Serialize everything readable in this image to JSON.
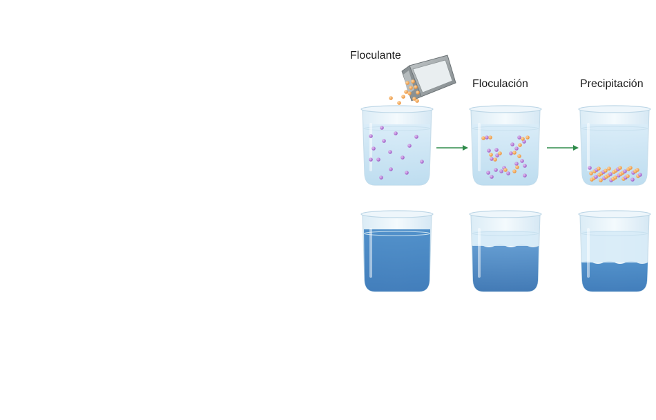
{
  "labels": {
    "flocculant": "Floculante",
    "flocculation": "Floculación",
    "precipitation": "Precipitación"
  },
  "colors": {
    "particle_purple": "#a366c9",
    "particle_orange": "#f0a048",
    "arrow_green": "#2e8b4a",
    "water_light": "#cfe6f5",
    "water_dark": "#3c7fc0",
    "box_gray": "#9da3a6"
  },
  "stages": [
    "flocculant",
    "flocculation",
    "precipitation"
  ],
  "icons": [
    "flocculant-box-icon",
    "arrow-right-icon"
  ]
}
